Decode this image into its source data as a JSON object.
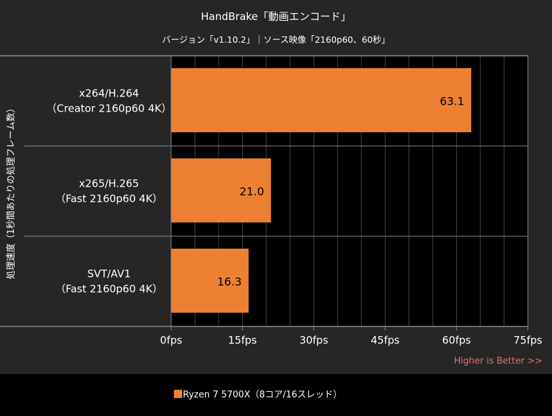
{
  "chart_data": {
    "type": "bar",
    "orientation": "horizontal",
    "title": "HandBrake「動画エンコード」",
    "subtitle": "バージョン「v1.10.2」｜ソース映像「2160p60、60秒」",
    "ylabel": "処理速度（1秒間あたりの処理フレーム数）",
    "categories": [
      [
        "x264/H.264",
        "（Creator 2160p60 4K）"
      ],
      [
        "x265/H.265",
        "（Fast 2160p60 4K）"
      ],
      [
        "SVT/AV1",
        "（Fast 2160p60 4K）"
      ]
    ],
    "series": [
      {
        "name": "Ryzen 7 5700X（8コア/16スレッド）",
        "values": [
          63.1,
          21.0,
          16.3
        ],
        "labels": [
          "63.1",
          "21.0",
          "16.3"
        ],
        "color": "#ee8033"
      }
    ],
    "xlim": [
      0,
      75
    ],
    "xticks": [
      0,
      15,
      30,
      45,
      60,
      75
    ],
    "xtick_labels": [
      "0fps",
      "15fps",
      "30fps",
      "45fps",
      "60fps",
      "75fps"
    ],
    "grid_step": 5,
    "grid": true,
    "legend_placement": "bottom",
    "note": "Higher is Better >>",
    "colors": {
      "background": "#262626",
      "plot_background": "#000000",
      "note": "#f06a6a",
      "grid": "#444444"
    }
  }
}
